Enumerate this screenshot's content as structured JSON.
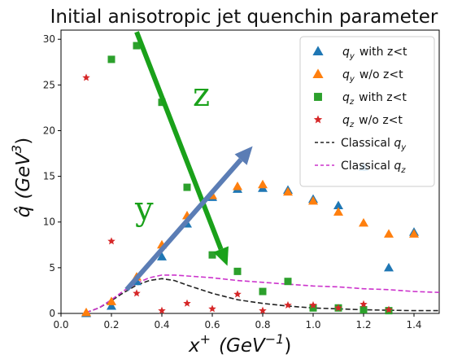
{
  "chart_data": {
    "type": "scatter",
    "title": "Initial anisotropic jet quenchin parameter",
    "xlim": [
      0.0,
      1.5
    ],
    "ylim": [
      0,
      31
    ],
    "xticks": [
      "0.0",
      "0.2",
      "0.4",
      "0.6",
      "0.8",
      "1.0",
      "1.2",
      "1.4"
    ],
    "yticks": [
      "0",
      "5",
      "10",
      "15",
      "20",
      "25",
      "30"
    ],
    "legend_position": "top-right",
    "grid": false,
    "series": [
      {
        "name": "q_y with z<t",
        "marker": "triangle",
        "color": "#1f77b4",
        "x": [
          0.1,
          0.2,
          0.3,
          0.4,
          0.5,
          0.6,
          0.7,
          0.8,
          0.9,
          1.0,
          1.1,
          1.2,
          1.3,
          1.4
        ],
        "y": [
          0.0,
          0.8,
          3.5,
          6.2,
          9.8,
          12.7,
          13.6,
          13.7,
          13.5,
          12.5,
          11.8,
          16.0,
          5.0,
          8.9
        ]
      },
      {
        "name": "q_y w/o z<t",
        "marker": "triangle",
        "color": "#ff7f0e",
        "x": [
          0.1,
          0.2,
          0.3,
          0.4,
          0.5,
          0.6,
          0.7,
          0.8,
          0.9,
          1.0,
          1.1,
          1.2,
          1.3,
          1.4
        ],
        "y": [
          0.1,
          1.3,
          4.0,
          7.5,
          10.7,
          12.9,
          13.9,
          14.1,
          13.3,
          12.3,
          11.1,
          9.9,
          8.7,
          8.7
        ]
      },
      {
        "name": "q_z with z<t",
        "marker": "square",
        "color": "#2ca02c",
        "x": [
          0.2,
          0.3,
          0.4,
          0.5,
          0.6,
          0.7,
          0.8,
          0.9,
          1.0,
          1.1,
          1.2,
          1.3
        ],
        "y": [
          27.8,
          29.3,
          23.1,
          13.8,
          6.4,
          4.6,
          2.4,
          3.5,
          0.6,
          0.6,
          0.4,
          0.3
        ]
      },
      {
        "name": "q_z w/o z<t",
        "marker": "star",
        "color": "#d62728",
        "x": [
          0.1,
          0.2,
          0.3,
          0.4,
          0.5,
          0.6,
          0.7,
          0.8,
          0.9,
          1.0,
          1.1,
          1.2,
          1.3
        ],
        "y": [
          25.8,
          7.9,
          2.2,
          0.3,
          1.1,
          0.5,
          2.1,
          0.3,
          0.9,
          0.9,
          0.6,
          1.0,
          0.4
        ]
      },
      {
        "name": "Classical q_y",
        "line": "dashed",
        "color": "#222222",
        "x": [
          0.1,
          0.15,
          0.2,
          0.25,
          0.3,
          0.35,
          0.4,
          0.45,
          0.5,
          0.6,
          0.7,
          0.8,
          0.9,
          1.0,
          1.1,
          1.2,
          1.3,
          1.4,
          1.5
        ],
        "y": [
          0.1,
          0.6,
          1.4,
          2.3,
          3.1,
          3.6,
          3.8,
          3.6,
          3.1,
          2.2,
          1.5,
          1.1,
          0.8,
          0.6,
          0.5,
          0.4,
          0.35,
          0.3,
          0.3
        ]
      },
      {
        "name": "Classical q_z",
        "line": "dashed",
        "color": "#cc33cc",
        "x": [
          0.1,
          0.15,
          0.2,
          0.25,
          0.3,
          0.35,
          0.4,
          0.45,
          0.5,
          0.6,
          0.7,
          0.8,
          0.9,
          1.0,
          1.1,
          1.2,
          1.3,
          1.4,
          1.5
        ],
        "y": [
          0.1,
          0.6,
          1.5,
          2.5,
          3.3,
          3.9,
          4.2,
          4.2,
          4.1,
          3.9,
          3.6,
          3.4,
          3.2,
          3.0,
          2.9,
          2.7,
          2.6,
          2.4,
          2.3
        ]
      }
    ],
    "legend": [
      {
        "label": "with z<t",
        "symbol": "q",
        "sub": "y",
        "marker": "triangle",
        "color": "#1f77b4"
      },
      {
        "label": "w/o z<t",
        "symbol": "q",
        "sub": "y",
        "marker": "triangle",
        "color": "#ff7f0e"
      },
      {
        "label": "with z<t",
        "symbol": "q",
        "sub": "z",
        "marker": "square",
        "color": "#2ca02c"
      },
      {
        "label": "w/o z<t",
        "symbol": "q",
        "sub": "z",
        "marker": "star",
        "color": "#d62728"
      },
      {
        "label": "Classical",
        "symbol": "q",
        "sub": "y",
        "marker": "dash",
        "color": "#222222"
      },
      {
        "label": "Classical",
        "symbol": "q",
        "sub": "z",
        "marker": "dash",
        "color": "#cc33cc"
      }
    ],
    "xlabel": {
      "main": "x",
      "sup": "+",
      "unit": "(GeV",
      "unit_sup": "−1",
      "close": ")"
    },
    "ylabel": {
      "main": "q̂",
      "unit": "(GeV",
      "unit_sup": "3",
      "close": ")"
    },
    "annotations": [
      {
        "text": "z",
        "color": "#1aa11a",
        "arrow_color": "#1aa11a",
        "arrow_from": [
          0.3,
          30.8
        ],
        "arrow_to": [
          0.66,
          5.2
        ]
      },
      {
        "text": "y",
        "color": "#1aa11a",
        "arrow_color": "#5b7db5",
        "arrow_from": [
          0.26,
          2.6
        ],
        "arrow_to": [
          0.76,
          18.3
        ]
      }
    ]
  }
}
